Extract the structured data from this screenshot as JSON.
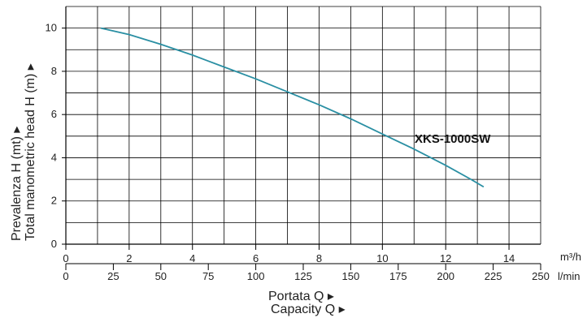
{
  "chart_data": {
    "type": "line",
    "ylabel_it": "Prevalenza H (mt) ▸",
    "ylabel_en": "Total manometric head H (m) ▸",
    "xlabel_it": "Portata Q ▸",
    "xlabel_en": "Capacity Q ▸",
    "x_unit_primary": "m³/h",
    "x_unit_secondary": "l/min",
    "xlim_m3h": [
      0,
      15
    ],
    "xlim_lmin": [
      0,
      250
    ],
    "ylim": [
      0,
      11
    ],
    "x_ticks_m3h": [
      "0",
      "2",
      "4",
      "6",
      "8",
      "10",
      "12",
      "14"
    ],
    "x_tick_values_m3h": [
      0,
      2,
      4,
      6,
      8,
      10,
      12,
      14
    ],
    "x_ticks_lmin": [
      "0",
      "25",
      "50",
      "75",
      "100",
      "125",
      "150",
      "175",
      "200",
      "225",
      "250"
    ],
    "x_tick_values_lmin": [
      0,
      25,
      50,
      75,
      100,
      125,
      150,
      175,
      200,
      225,
      250
    ],
    "y_ticks": [
      "0",
      "2",
      "4",
      "6",
      "8",
      "10"
    ],
    "y_tick_values": [
      0,
      2,
      4,
      6,
      8,
      10
    ],
    "grid": true,
    "series": [
      {
        "name": "XKS-1000SW",
        "color": "#2a8fa3",
        "x_m3h": [
          1.1,
          2,
          3,
          4,
          5,
          6,
          7,
          8,
          9,
          10,
          11,
          12,
          12.8,
          13.2
        ],
        "y": [
          10.0,
          9.7,
          9.25,
          8.75,
          8.2,
          7.65,
          7.05,
          6.45,
          5.8,
          5.1,
          4.4,
          3.65,
          3.0,
          2.65
        ]
      }
    ]
  }
}
